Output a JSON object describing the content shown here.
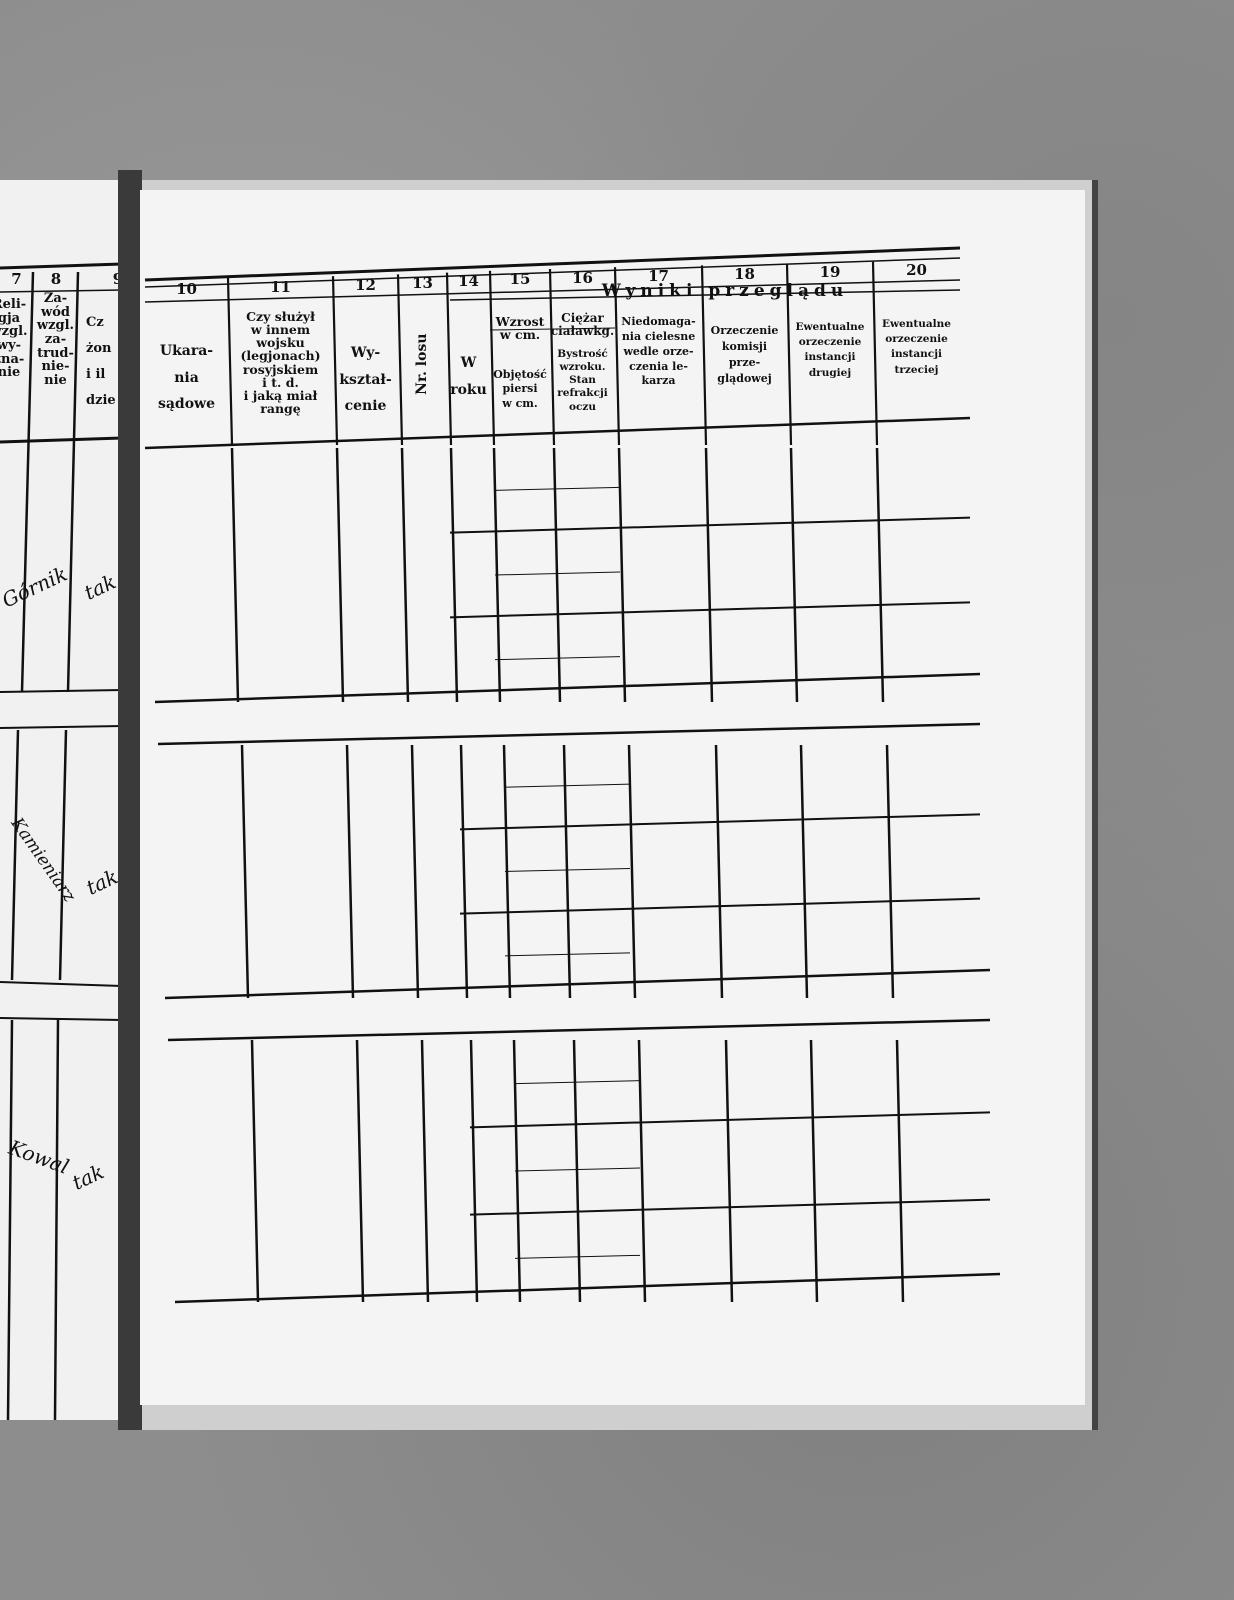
{
  "left_page": {
    "columns": [
      {
        "number": "7",
        "header": "Reli-\ngja\nwzgl.\nwy-\nzna-\nnie"
      },
      {
        "number": "8",
        "header": "Za-\nwód\nwzgl.\nza-\ntrud-\nnie-\nnie"
      },
      {
        "number": "9",
        "header": "Cz\nżon\ni il\ndzie"
      }
    ],
    "entries": [
      {
        "occupation": "Górnik",
        "col9": "tak"
      },
      {
        "occupation": "Kamieniarz",
        "col9": "tak"
      },
      {
        "occupation": "Kowal",
        "col9": "tak"
      }
    ]
  },
  "right_page": {
    "group_header": "Wyniki przeglądu",
    "columns": [
      {
        "number": "10",
        "header": "Ukara-\nnia\nsądowe"
      },
      {
        "number": "11",
        "header": "Czy służył\nw innem\nwojsku\n(legjonach)\nrosyjskiem\ni t. d.\ni jaką miał\nrangę"
      },
      {
        "number": "12",
        "header": "Wy-\nkształ-\ncenie"
      },
      {
        "number": "13",
        "header": "Nr. losu"
      },
      {
        "number": "14",
        "header": "W\nroku"
      },
      {
        "number": "15",
        "header_top": "Wzrost\nw cm.",
        "header": "Objętość\npiersi\nw cm."
      },
      {
        "number": "16",
        "header_top": "Ciężar\nciaławkg.",
        "header": "Bystrość\nwzroku.\nStan\nrefrakcji\noczu"
      },
      {
        "number": "17",
        "header": "Niedomaga-\nnia cielesne\nwedle orze-\nczenia le-\nkarza"
      },
      {
        "number": "18",
        "header": "Orzeczenie\nkomisji\nprze-\nglądowej"
      },
      {
        "number": "19",
        "header": "Ewentualne\norzeczenie\ninstancji\ndrugiej"
      },
      {
        "number": "20",
        "header": "Ewentualne\norzeczenie\ninstancji\ntrzeciej"
      }
    ]
  }
}
